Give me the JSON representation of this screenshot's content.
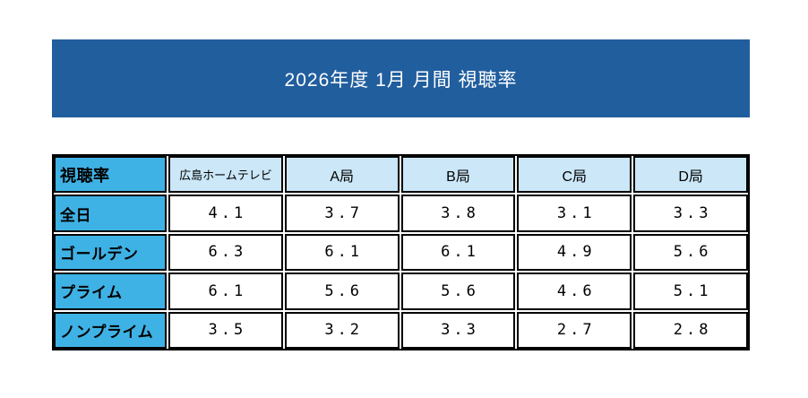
{
  "banner": {
    "title": "2026年度 1月 月間 視聴率"
  },
  "table": {
    "corner_header": "視聴率",
    "column_headers": [
      "広島ホームテレビ",
      "A局",
      "B局",
      "C局",
      "D局"
    ],
    "row_headers": [
      "全日",
      "ゴールデン",
      "プライム",
      "ノンプライム"
    ],
    "cells": [
      [
        "4.1",
        "3.7",
        "3.8",
        "3.1",
        "3.3"
      ],
      [
        "6.3",
        "6.1",
        "6.1",
        "4.9",
        "5.6"
      ],
      [
        "6.1",
        "5.6",
        "5.6",
        "4.6",
        "5.1"
      ],
      [
        "3.5",
        "3.2",
        "3.3",
        "2.7",
        "2.8"
      ]
    ]
  },
  "chart_data": {
    "type": "table",
    "title": "2026年度 1月 月間 視聴率",
    "corner_label": "視聴率",
    "columns": [
      "広島ホームテレビ",
      "A局",
      "B局",
      "C局",
      "D局"
    ],
    "rows": [
      "全日",
      "ゴールデン",
      "プライム",
      "ノンプライム"
    ],
    "values": [
      [
        4.1,
        3.7,
        3.8,
        3.1,
        3.3
      ],
      [
        6.3,
        6.1,
        6.1,
        4.9,
        5.6
      ],
      [
        6.1,
        5.6,
        5.6,
        4.6,
        5.1
      ],
      [
        3.5,
        3.2,
        3.3,
        2.7,
        2.8
      ]
    ]
  },
  "colors": {
    "banner-bg": "#215E9E",
    "banner-text": "#FFFFFF",
    "row-header-bg": "#3FB2E5",
    "column-header-bg": "#CBE7F8",
    "cell-bg": "#FFFFFF",
    "border": "#000000"
  }
}
